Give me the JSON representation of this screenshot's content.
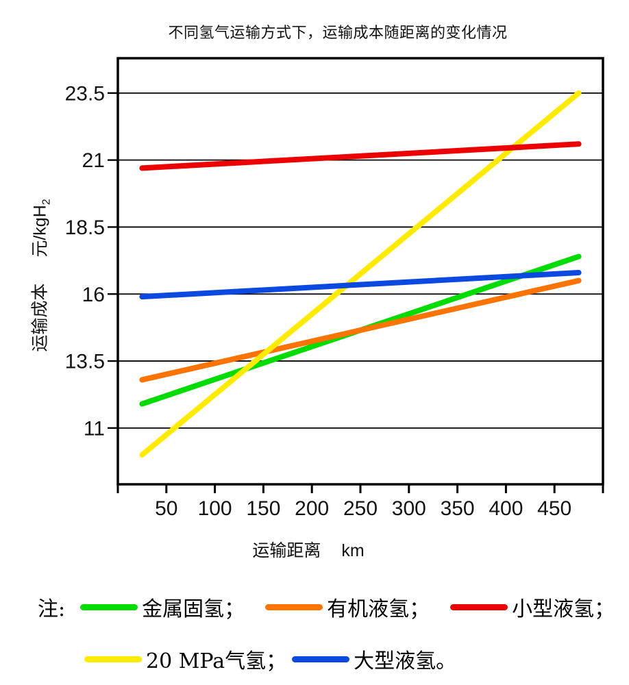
{
  "chart_data": {
    "type": "line",
    "title": "不同氢气运输方式下，运输成本随距离的变化情况",
    "xlabel": "运输距离",
    "x_unit": "km",
    "ylabel": "运输成本",
    "y_unit_base": "元/kgH",
    "y_unit_sub": "2",
    "xlim": [
      0,
      500
    ],
    "ylim": [
      8.9,
      24.8
    ],
    "xticks": [
      50,
      100,
      150,
      200,
      250,
      300,
      350,
      400,
      450
    ],
    "yticks": [
      11,
      13.5,
      16,
      18.5,
      21,
      23.5
    ],
    "grid": "horizontal-only",
    "legend_position": "below",
    "series": [
      {
        "name": "金属固氢",
        "color": "#00DC00",
        "x": [
          25,
          475
        ],
        "y": [
          11.9,
          17.4
        ]
      },
      {
        "name": "有机液氢",
        "color": "#FF7300",
        "x": [
          25,
          475
        ],
        "y": [
          12.8,
          16.5
        ]
      },
      {
        "name": "小型液氢",
        "color": "#ED0000",
        "x": [
          25,
          475
        ],
        "y": [
          20.7,
          21.6
        ]
      },
      {
        "name": "20 MPa气氢",
        "color": "#FFEB00",
        "x": [
          25,
          475
        ],
        "y": [
          10.0,
          23.5
        ]
      },
      {
        "name": "大型液氢",
        "color": "#0B49E0",
        "x": [
          25,
          475
        ],
        "y": [
          15.9,
          16.8
        ]
      }
    ],
    "draw_order": [
      0,
      1,
      3,
      2,
      4
    ],
    "legend": {
      "prefix": "注:",
      "rows": [
        [
          "金属固氢；",
          "有机液氢；",
          "小型液氢；"
        ],
        [
          "20 MPa气氢；",
          "大型液氢。"
        ]
      ]
    },
    "axis_color": "#000000",
    "text_color": "#141414"
  }
}
